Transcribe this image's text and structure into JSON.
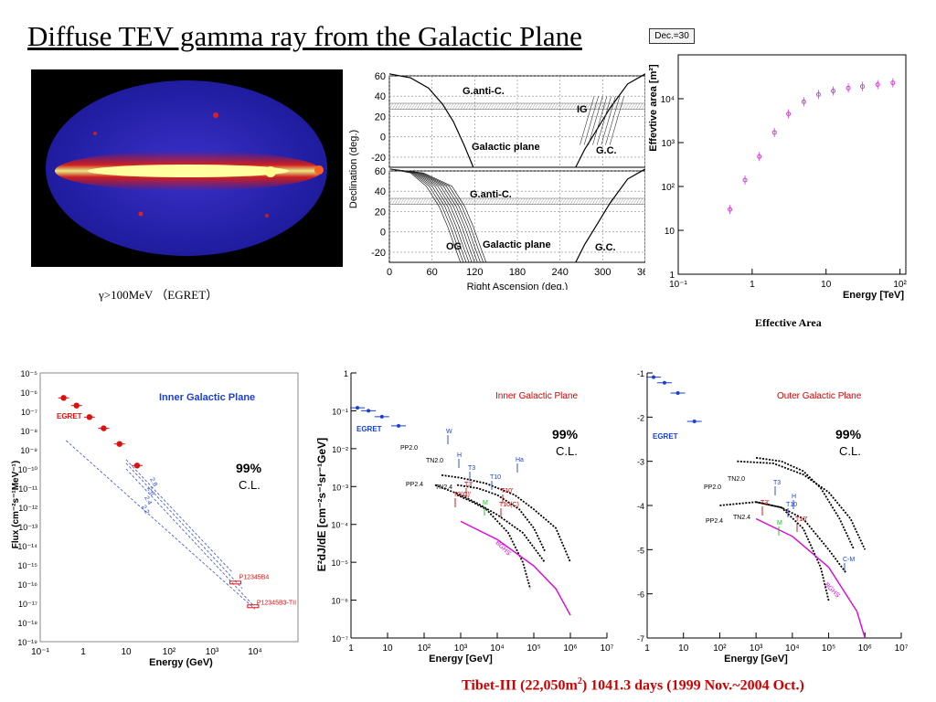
{
  "slide": {
    "title": "Diffuse TEV gamma ray from the Galactic Plane",
    "badge": "Dec.=30",
    "sky_caption": "γ>100MeV （EGRET）",
    "effective_area_caption": "Effective Area",
    "footer_prefix": "Tibet-III (22,050m",
    "footer_sup": "2",
    "footer_suffix": ") 1041.3 days (1999 Nov.~2004 Oct.)"
  },
  "colors": {
    "accent_red": "#d00000",
    "blue": "#1a3fd6",
    "magenta": "#e000e0",
    "green": "#10c020",
    "egret_red": "#e01010"
  },
  "chart_data": [
    {
      "id": "declination",
      "type": "line",
      "xlabel": "Right Ascension (deg.)",
      "ylabel": "Declination (deg.)",
      "xlim": [
        0,
        360
      ],
      "ylim": [
        -30,
        60
      ],
      "x_ticks": [
        "0",
        "60",
        "120",
        "180",
        "240",
        "300",
        "360"
      ],
      "y_ticks_top": [
        "60",
        "40",
        "20",
        "0",
        "-20"
      ],
      "y_ticks_bottom": [
        "60",
        "40",
        "20",
        "0",
        "-20"
      ],
      "grid": true,
      "annotations_top": [
        "G.anti-C.",
        "IG",
        "Galactic plane",
        "G.C."
      ],
      "annotations_bottom": [
        "G.anti-C.",
        "OG",
        "Galactic plane",
        "G.C."
      ]
    },
    {
      "id": "effective_area",
      "type": "scatter",
      "xlabel": "Energy [TeV]",
      "ylabel": "Effevtive area [m²]",
      "x_log": true,
      "y_log": true,
      "xlim": [
        0.1,
        120
      ],
      "ylim": [
        1,
        100000
      ],
      "x_ticks": [
        "10⁻¹",
        "1",
        "10",
        "10²"
      ],
      "y_ticks": [
        "1",
        "10",
        "10²",
        "10³",
        "10⁴"
      ],
      "color": "#d040d0",
      "points": [
        [
          0.5,
          30
        ],
        [
          0.8,
          140
        ],
        [
          1.25,
          480
        ],
        [
          2.0,
          1700
        ],
        [
          3.1,
          4500
        ],
        [
          5.0,
          8500
        ],
        [
          7.9,
          12500
        ],
        [
          12.5,
          15000
        ],
        [
          20,
          17500
        ],
        [
          31,
          19000
        ],
        [
          50,
          21000
        ],
        [
          80,
          23000
        ]
      ]
    },
    {
      "id": "inner_egret",
      "type": "scatter",
      "title": "Inner Galactic Plane",
      "xlabel": "Energy (GeV)",
      "ylabel": "Flux (cm⁻²s⁻¹MeV⁻¹)",
      "x_log": true,
      "y_log": true,
      "xlim": [
        0.1,
        100000
      ],
      "ylim": [
        1e-19,
        1e-05
      ],
      "x_ticks": [
        "10⁻¹",
        "1",
        "10",
        "10²",
        "10³",
        "10⁴"
      ],
      "y_ticks": [
        "10⁻⁵",
        "10⁻⁶",
        "10⁻⁷",
        "10⁻⁸",
        "10⁻⁹",
        "10⁻¹⁰",
        "10⁻¹¹",
        "10⁻¹²",
        "10⁻¹³",
        "10⁻¹⁴",
        "10⁻¹⁵",
        "10⁻¹⁶",
        "10⁻¹⁷",
        "10⁻¹⁸",
        "10⁻¹⁹"
      ],
      "confidence": "99%",
      "confidence_label": "C.L.",
      "egret_label": "EGRET",
      "egret_points": [
        [
          0.35,
          5e-07
        ],
        [
          0.7,
          2e-07
        ],
        [
          1.4,
          5e-08
        ],
        [
          3,
          1.3e-08
        ],
        [
          7,
          2e-09
        ],
        [
          18,
          1.5e-10
        ]
      ],
      "upper_limits": [
        {
          "label": "P12345B4",
          "x": 3500,
          "y": 1.2e-16
        },
        {
          "label": "P12345B3-TII",
          "x": 9000,
          "y": 7e-18
        }
      ],
      "line_labels": [
        "2.8",
        "2.6",
        "2.4",
        "2.2"
      ],
      "lines": [
        {
          "from": [
            10,
            3e-10
          ],
          "to": [
            3000,
            4e-16
          ]
        },
        {
          "from": [
            10,
            2e-10
          ],
          "to": [
            5000,
            6e-17
          ]
        },
        {
          "from": [
            10,
            1e-10
          ],
          "to": [
            9000,
            8e-18
          ]
        },
        {
          "from": [
            0.4,
            3e-09
          ],
          "to": [
            10000,
            5e-18
          ]
        }
      ]
    },
    {
      "id": "inner_tibet",
      "type": "line",
      "title": "Inner Galactic Plane",
      "xlabel": "Energy [GeV]",
      "ylabel": "E²dJ/dE [cm⁻²s⁻¹sr⁻¹GeV]",
      "x_log": true,
      "y_log": true,
      "xlim": [
        1,
        10000000
      ],
      "ylim": [
        1e-07,
        1
      ],
      "x_ticks": [
        "1",
        "10",
        "10²",
        "10³",
        "10⁴",
        "10⁵",
        "10⁶",
        "10⁷"
      ],
      "y_ticks": [
        "1",
        "10⁻¹",
        "10⁻²",
        "10⁻³",
        "10⁻⁴",
        "10⁻⁵",
        "10⁻⁶",
        "10⁻⁷"
      ],
      "confidence": "99%",
      "confidence_label": "C.L.",
      "egret_label": "EGRET",
      "egret_points": [
        [
          1.5,
          0.12
        ],
        [
          3,
          0.1
        ],
        [
          7,
          0.07
        ],
        [
          20,
          0.04
        ]
      ],
      "model_labels": [
        "PP2.0",
        "TN2.0",
        "PP2.4",
        "TN2.4",
        "BGHS"
      ],
      "measurement_labels": [
        "W",
        "H",
        "T3",
        "T3'",
        "T3(C)'",
        "M",
        "T10",
        "T10'",
        "T10(C)",
        "Ha"
      ],
      "series": [
        {
          "name": "PP2.0",
          "points": [
            [
              300,
              0.002
            ],
            [
              1000,
              0.0017
            ],
            [
              5000,
              0.0012
            ],
            [
              30000,
              0.0006
            ],
            [
              100000,
              0.00025
            ],
            [
              400000,
              8e-05
            ],
            [
              1000000,
              1e-05
            ]
          ]
        },
        {
          "name": "TN2.0",
          "points": [
            [
              800,
              0.0011
            ],
            [
              3000,
              0.0009
            ],
            [
              10000,
              0.0006
            ],
            [
              40000,
              0.00025
            ],
            [
              100000,
              8e-05
            ],
            [
              200000,
              2e-05
            ]
          ]
        },
        {
          "name": "PP2.4",
          "points": [
            [
              200,
              0.0011
            ],
            [
              1000,
              0.0006
            ],
            [
              3000,
              0.00035
            ],
            [
              10000,
              0.00018
            ],
            [
              50000,
              6e-05
            ],
            [
              200000,
              1e-05
            ]
          ]
        },
        {
          "name": "TN2.4",
          "points": [
            [
              800,
              0.0006
            ],
            [
              2000,
              0.0004
            ],
            [
              5000,
              0.00025
            ],
            [
              20000,
              6e-05
            ],
            [
              50000,
              1e-05
            ],
            [
              80000,
              2e-06
            ]
          ]
        },
        {
          "name": "BGHS",
          "points": [
            [
              1000,
              0.00012
            ],
            [
              10000,
              4e-05
            ],
            [
              100000,
              8e-06
            ],
            [
              400000,
              2e-06
            ],
            [
              1000000,
              4e-07
            ]
          ]
        }
      ]
    },
    {
      "id": "outer_tibet",
      "type": "line",
      "title": "Outer Galactic Plane",
      "xlabel": "Energy [GeV]",
      "ylabel": "",
      "x_log": true,
      "y_log": true,
      "xlim": [
        1,
        10000000
      ],
      "ylim": [
        1e-07,
        0.1
      ],
      "x_ticks": [
        "1",
        "10",
        "10²",
        "10³",
        "10⁴",
        "10⁵",
        "10⁶",
        "10⁷"
      ],
      "y_ticks": [
        "-1",
        "-2",
        "-3",
        "-4",
        "-5",
        "-6",
        "-7"
      ],
      "confidence": "99%",
      "confidence_label": "C.L.",
      "egret_label": "EGRET",
      "egret_points": [
        [
          1.5,
          0.08
        ],
        [
          3,
          0.06
        ],
        [
          7,
          0.035
        ],
        [
          20,
          0.008
        ]
      ],
      "model_labels": [
        "TN2.0",
        "PP2.0",
        "PP2.4",
        "TN2.4",
        "BGHS"
      ],
      "measurement_labels": [
        "T3",
        "T3'",
        "H",
        "T10",
        "T10'",
        "M",
        "C-M"
      ],
      "series": [
        {
          "name": "PP2.0",
          "points": [
            [
              300,
              0.001
            ],
            [
              3000,
              0.0009
            ],
            [
              20000,
              0.0005
            ],
            [
              100000,
              0.0002
            ],
            [
              400000,
              5e-05
            ],
            [
              1000000,
              1e-05
            ]
          ]
        },
        {
          "name": "TN2.0",
          "points": [
            [
              1000,
              0.0012
            ],
            [
              5000,
              0.001
            ],
            [
              20000,
              0.0006
            ],
            [
              60000,
              0.00025
            ],
            [
              200000,
              5e-05
            ],
            [
              500000,
              1e-05
            ]
          ]
        },
        {
          "name": "PP2.4",
          "points": [
            [
              100,
              0.0001
            ],
            [
              1000,
              0.00012
            ],
            [
              5000,
              9e-05
            ],
            [
              20000,
              5e-05
            ],
            [
              100000,
              1e-05
            ],
            [
              300000,
              3e-06
            ]
          ]
        },
        {
          "name": "TN2.4",
          "points": [
            [
              1000,
              0.00012
            ],
            [
              5000,
              9e-05
            ],
            [
              20000,
              3e-05
            ],
            [
              60000,
              4e-06
            ],
            [
              100000,
              7e-07
            ]
          ]
        },
        {
          "name": "BGHS",
          "points": [
            [
              1000,
              5e-05
            ],
            [
              10000,
              2e-05
            ],
            [
              100000,
              4e-06
            ],
            [
              600000,
              4e-07
            ],
            [
              1000000,
              1e-07
            ]
          ]
        }
      ]
    }
  ]
}
